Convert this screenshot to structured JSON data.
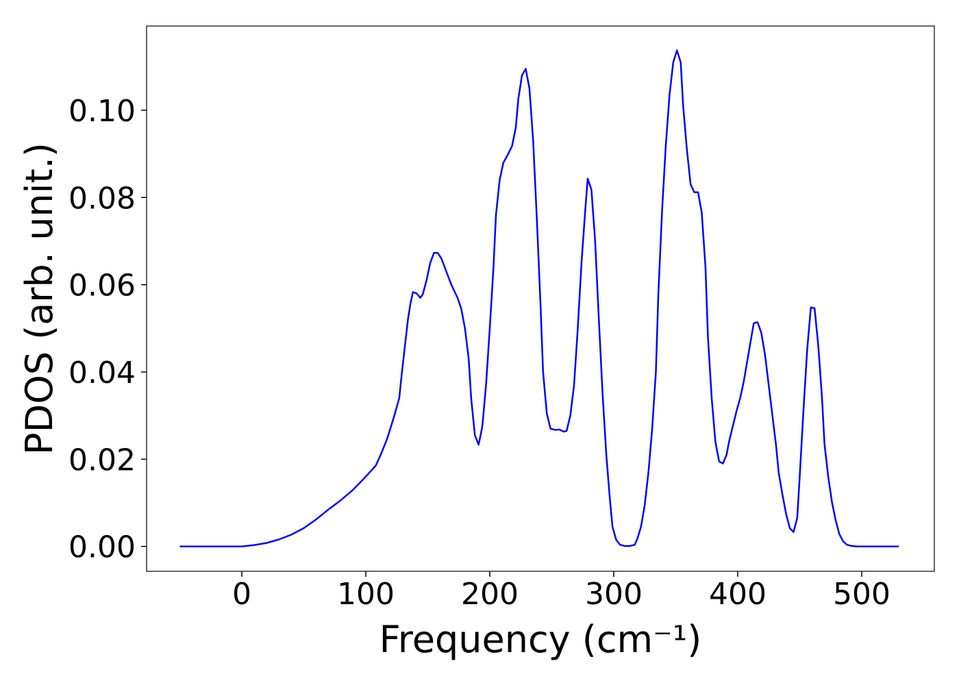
{
  "chart_data": {
    "type": "line",
    "x_label": "Frequency (cm⁻¹)",
    "y_label": "PDOS (arb. unit.)",
    "xlim": [
      -76.8,
      558.6
    ],
    "ylim": [
      -0.0057,
      0.1193
    ],
    "xticks": [
      0,
      100,
      200,
      300,
      400,
      500
    ],
    "yticks": [
      {
        "value": 0,
        "label": "0.00"
      },
      {
        "value": 0.02,
        "label": "0.02"
      },
      {
        "value": 0.04,
        "label": "0.04"
      },
      {
        "value": 0.06,
        "label": "0.06"
      },
      {
        "value": 0.08,
        "label": "0.08"
      },
      {
        "value": 0.1,
        "label": "0.10"
      }
    ],
    "grid": false,
    "series": [
      {
        "color": "#0000ff",
        "x": [
          -50,
          0,
          10,
          20,
          30,
          40,
          50,
          60,
          70,
          79,
          89,
          98,
          108,
          112,
          117,
          122,
          127,
          129,
          132,
          134,
          136,
          138,
          141,
          144,
          146,
          149,
          152,
          155,
          158,
          161,
          165,
          169,
          174,
          177,
          180,
          183,
          185,
          188,
          191,
          194,
          197,
          200,
          203,
          205,
          208,
          211,
          214,
          218,
          221,
          223,
          226,
          229,
          232,
          235,
          238,
          241,
          243,
          246,
          249,
          253,
          256,
          260,
          262,
          265,
          268,
          271,
          274,
          277,
          279,
          282,
          285,
          288,
          291,
          294,
          297,
          299,
          302,
          305,
          309,
          313,
          317,
          319,
          322,
          325,
          328,
          331,
          334,
          336,
          339,
          342,
          345,
          348,
          351,
          354,
          356,
          359,
          362,
          365,
          368,
          371,
          374,
          376,
          379,
          382,
          385,
          388,
          391,
          393,
          396,
          399,
          402,
          405,
          408,
          411,
          413,
          416,
          419,
          422,
          425,
          428,
          431,
          433,
          436,
          439,
          442,
          445,
          448,
          450,
          453,
          456,
          459,
          462,
          465,
          468,
          470,
          473,
          476,
          479,
          482,
          485,
          488,
          492,
          497,
          530
        ],
        "values": [
          0,
          0,
          0.0003,
          0.0008,
          0.0016,
          0.0027,
          0.0042,
          0.0062,
          0.0085,
          0.0104,
          0.0128,
          0.0154,
          0.0185,
          0.021,
          0.0245,
          0.029,
          0.034,
          0.0395,
          0.047,
          0.052,
          0.0556,
          0.0583,
          0.058,
          0.057,
          0.0578,
          0.061,
          0.065,
          0.0673,
          0.0673,
          0.066,
          0.063,
          0.06,
          0.057,
          0.0545,
          0.05,
          0.043,
          0.034,
          0.0255,
          0.0233,
          0.0275,
          0.037,
          0.05,
          0.064,
          0.076,
          0.084,
          0.088,
          0.0895,
          0.0918,
          0.096,
          0.1025,
          0.108,
          0.1095,
          0.105,
          0.093,
          0.075,
          0.055,
          0.04,
          0.0305,
          0.027,
          0.0267,
          0.0268,
          0.0263,
          0.0265,
          0.03,
          0.037,
          0.05,
          0.065,
          0.077,
          0.0843,
          0.0818,
          0.07,
          0.052,
          0.035,
          0.021,
          0.0105,
          0.0045,
          0.0015,
          0.0004,
          0.0001,
          0.0001,
          0.0004,
          0.0017,
          0.0045,
          0.0095,
          0.017,
          0.027,
          0.04,
          0.058,
          0.077,
          0.092,
          0.1035,
          0.111,
          0.1137,
          0.111,
          0.101,
          0.091,
          0.083,
          0.0812,
          0.0812,
          0.0765,
          0.064,
          0.048,
          0.034,
          0.024,
          0.0195,
          0.019,
          0.021,
          0.024,
          0.0275,
          0.031,
          0.034,
          0.038,
          0.043,
          0.048,
          0.0512,
          0.0514,
          0.049,
          0.044,
          0.037,
          0.03,
          0.023,
          0.017,
          0.012,
          0.0075,
          0.0042,
          0.0033,
          0.0065,
          0.016,
          0.031,
          0.045,
          0.0548,
          0.0546,
          0.046,
          0.034,
          0.0235,
          0.016,
          0.0102,
          0.006,
          0.0028,
          0.0012,
          0.0004,
          0.0001,
          0,
          0
        ]
      }
    ]
  }
}
